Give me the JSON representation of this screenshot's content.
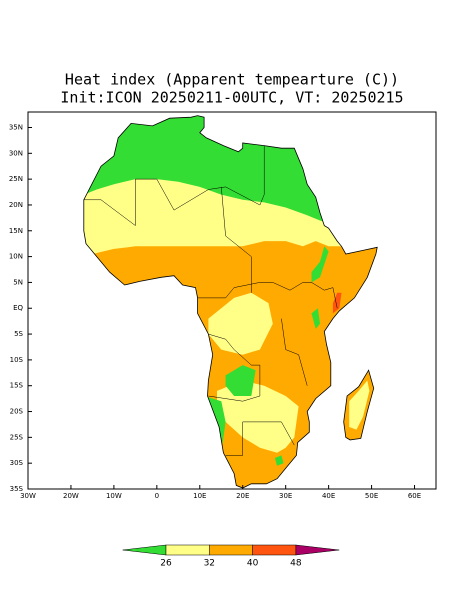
{
  "title": "Heat index (Apparent tempearture (C))",
  "subtitle": "Init:ICON 20250211-00UTC, VT: 20250215",
  "map": {
    "xlim": [
      -30,
      65
    ],
    "ylim": [
      -35,
      38
    ],
    "xticks": [
      {
        "value": -30,
        "label": "30W"
      },
      {
        "value": -20,
        "label": "20W"
      },
      {
        "value": -10,
        "label": "10W"
      },
      0,
      {
        "value": 10,
        "label": "10E"
      },
      {
        "value": 20,
        "label": "20E"
      },
      {
        "value": 30,
        "label": "30E"
      },
      {
        "value": 40,
        "label": "40E"
      },
      {
        "value": 50,
        "label": "50E"
      },
      {
        "value": 60,
        "label": "60E"
      }
    ],
    "yticks": [
      {
        "value": 35,
        "label": "35N"
      },
      {
        "value": 30,
        "label": "30N"
      },
      {
        "value": 25,
        "label": "25N"
      },
      {
        "value": 20,
        "label": "20N"
      },
      {
        "value": 15,
        "label": "15N"
      },
      {
        "value": 10,
        "label": "10N"
      },
      {
        "value": 5,
        "label": "5N"
      },
      {
        "value": 0,
        "label": "EQ"
      },
      {
        "value": -5,
        "label": "5S"
      },
      {
        "value": -10,
        "label": "10S"
      },
      {
        "value": -15,
        "label": "15S"
      },
      {
        "value": -20,
        "label": "20S"
      },
      {
        "value": -25,
        "label": "25S"
      },
      {
        "value": -30,
        "label": "30S"
      },
      {
        "value": -35,
        "label": "35S"
      }
    ]
  },
  "colorbar": {
    "levels": [
      26,
      32,
      40,
      48
    ],
    "colors": [
      "#33dd33",
      "#ffff88",
      "#ffaa00",
      "#ff5511",
      "#aa0066"
    ]
  }
}
